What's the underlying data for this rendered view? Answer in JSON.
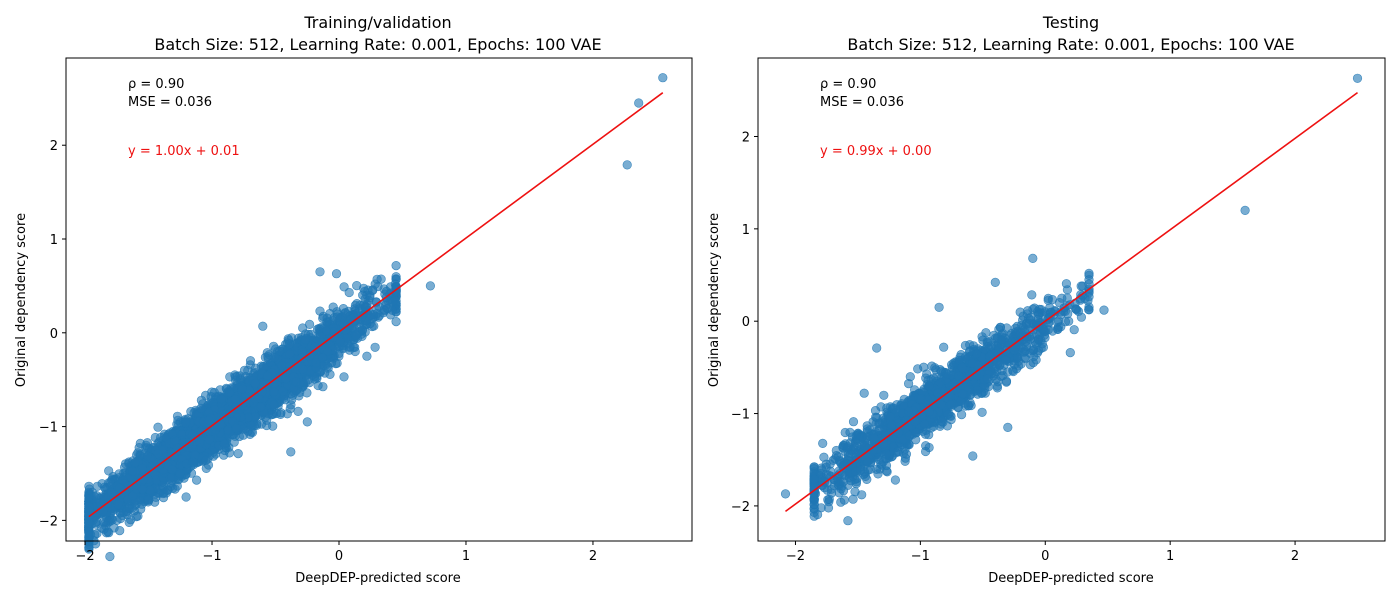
{
  "chart_data": [
    {
      "type": "scatter",
      "title": "Training/validation",
      "subtitle": "Batch Size: 512, Learning Rate: 0.001, Epochs: 100 VAE",
      "xlabel": "DeepDEP-predicted score",
      "ylabel": "Original dependency score",
      "xlim": [
        -2.15,
        2.78
      ],
      "ylim": [
        -2.22,
        2.93
      ],
      "xticks": [
        -2,
        -1,
        0,
        1,
        2
      ],
      "yticks": [
        -2,
        -1,
        0,
        1,
        2
      ],
      "tick_labels_x": [
        "−2",
        "−1",
        "0",
        "1",
        "2"
      ],
      "tick_labels_y": [
        "−2",
        "−1",
        "0",
        "1",
        "2"
      ],
      "annotations": [
        "ρ = 0.90",
        "MSE = 0.036"
      ],
      "fit_label": "y = 1.00x + 0.01",
      "fit": {
        "slope": 1.0,
        "intercept": 0.01,
        "x_range": [
          -1.97,
          2.55
        ],
        "color": "#ee1111"
      },
      "point_color": "#1f77b4",
      "grid": false,
      "cloud": {
        "n": 4000,
        "x_range": [
          -1.97,
          0.45
        ],
        "slope": 0.98,
        "intercept": -0.03,
        "noise": 0.14
      },
      "points": [
        {
          "x": 2.55,
          "y": 2.72
        },
        {
          "x": 2.36,
          "y": 2.45
        },
        {
          "x": 2.27,
          "y": 1.79
        },
        {
          "x": 0.72,
          "y": 0.5
        },
        {
          "x": 0.42,
          "y": 0.24
        },
        {
          "x": -1.97,
          "y": -1.95
        },
        {
          "x": -1.88,
          "y": -1.82
        },
        {
          "x": -1.72,
          "y": -1.98
        },
        {
          "x": -0.38,
          "y": -1.27
        },
        {
          "x": -0.15,
          "y": 0.65
        },
        {
          "x": 0.3,
          "y": 0.57
        },
        {
          "x": -0.02,
          "y": 0.63
        },
        {
          "x": 0.08,
          "y": 0.43
        },
        {
          "x": 0.22,
          "y": -0.25
        },
        {
          "x": -0.6,
          "y": 0.07
        },
        {
          "x": -0.82,
          "y": -0.45
        },
        {
          "x": -1.35,
          "y": -1.68
        },
        {
          "x": -1.52,
          "y": -1.2
        },
        {
          "x": -1.05,
          "y": -1.36
        },
        {
          "x": -0.25,
          "y": -0.95
        }
      ]
    },
    {
      "type": "scatter",
      "title": "Testing",
      "subtitle": "Batch Size: 512, Learning Rate: 0.001, Epochs: 100 VAE",
      "xlabel": "DeepDEP-predicted score",
      "ylabel": "Original dependency score",
      "xlim": [
        -2.3,
        2.72
      ],
      "ylim": [
        -2.38,
        2.85
      ],
      "xticks": [
        -2,
        -1,
        0,
        1,
        2
      ],
      "yticks": [
        -2,
        -1,
        0,
        1,
        2
      ],
      "tick_labels_x": [
        "−2",
        "−1",
        "0",
        "1",
        "2"
      ],
      "tick_labels_y": [
        "−2",
        "−1",
        "0",
        "1",
        "2"
      ],
      "annotations": [
        "ρ = 0.90",
        "MSE = 0.036"
      ],
      "fit_label": "y = 0.99x + 0.00",
      "fit": {
        "slope": 0.99,
        "intercept": 0.0,
        "x_range": [
          -2.08,
          2.5
        ],
        "color": "#ee1111"
      },
      "point_color": "#1f77b4",
      "grid": false,
      "cloud": {
        "n": 1600,
        "x_range": [
          -1.85,
          0.35
        ],
        "slope": 0.96,
        "intercept": -0.03,
        "noise": 0.15
      },
      "points": [
        {
          "x": 2.5,
          "y": 2.63
        },
        {
          "x": 1.6,
          "y": 1.2
        },
        {
          "x": -2.08,
          "y": -1.87
        },
        {
          "x": -1.58,
          "y": -2.16
        },
        {
          "x": -1.35,
          "y": -0.29
        },
        {
          "x": -0.58,
          "y": -1.46
        },
        {
          "x": 0.47,
          "y": 0.12
        },
        {
          "x": 0.2,
          "y": -0.34
        },
        {
          "x": -1.8,
          "y": -1.65
        },
        {
          "x": -0.1,
          "y": 0.68
        },
        {
          "x": 0.3,
          "y": 0.38
        },
        {
          "x": -1.47,
          "y": -1.88
        },
        {
          "x": -1.2,
          "y": -1.72
        },
        {
          "x": -0.85,
          "y": 0.15
        },
        {
          "x": -0.4,
          "y": 0.42
        },
        {
          "x": -0.3,
          "y": -1.15
        },
        {
          "x": -1.45,
          "y": -0.78
        }
      ]
    }
  ]
}
